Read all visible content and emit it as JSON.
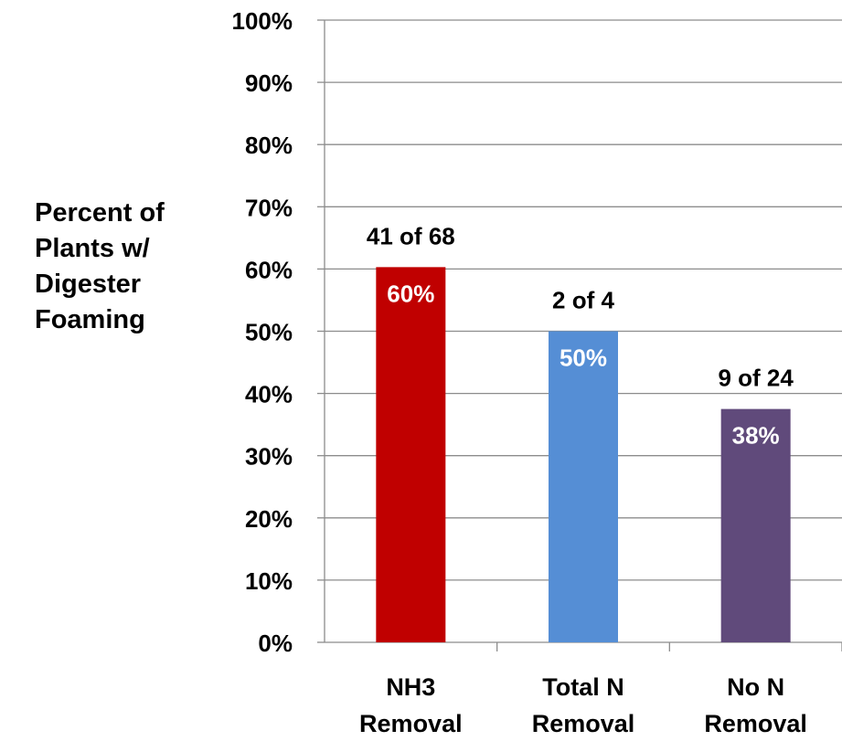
{
  "chart_data": {
    "type": "bar",
    "title": "",
    "xlabel": "",
    "ylabel_lines": [
      "Percent of",
      "Plants w/",
      "Digester",
      "Foaming"
    ],
    "ylim": [
      0,
      100
    ],
    "y_ticks": [
      0,
      10,
      20,
      30,
      40,
      50,
      60,
      70,
      80,
      90,
      100
    ],
    "y_tick_labels": [
      "0%",
      "10%",
      "20%",
      "30%",
      "40%",
      "50%",
      "60%",
      "70%",
      "80%",
      "90%",
      "100%"
    ],
    "grid": true,
    "legend": "none",
    "categories": [
      [
        "NH3",
        "Removal"
      ],
      [
        "Total N",
        "Removal"
      ],
      [
        "No N",
        "Removal"
      ]
    ],
    "values": [
      60.3,
      50,
      37.5
    ],
    "value_labels": [
      "60%",
      "50%",
      "38%"
    ],
    "count_labels": [
      "41 of 68",
      "2 of 4",
      "9 of 24"
    ],
    "colors": [
      "#c00000",
      "#558ed5",
      "#604a7b"
    ]
  }
}
